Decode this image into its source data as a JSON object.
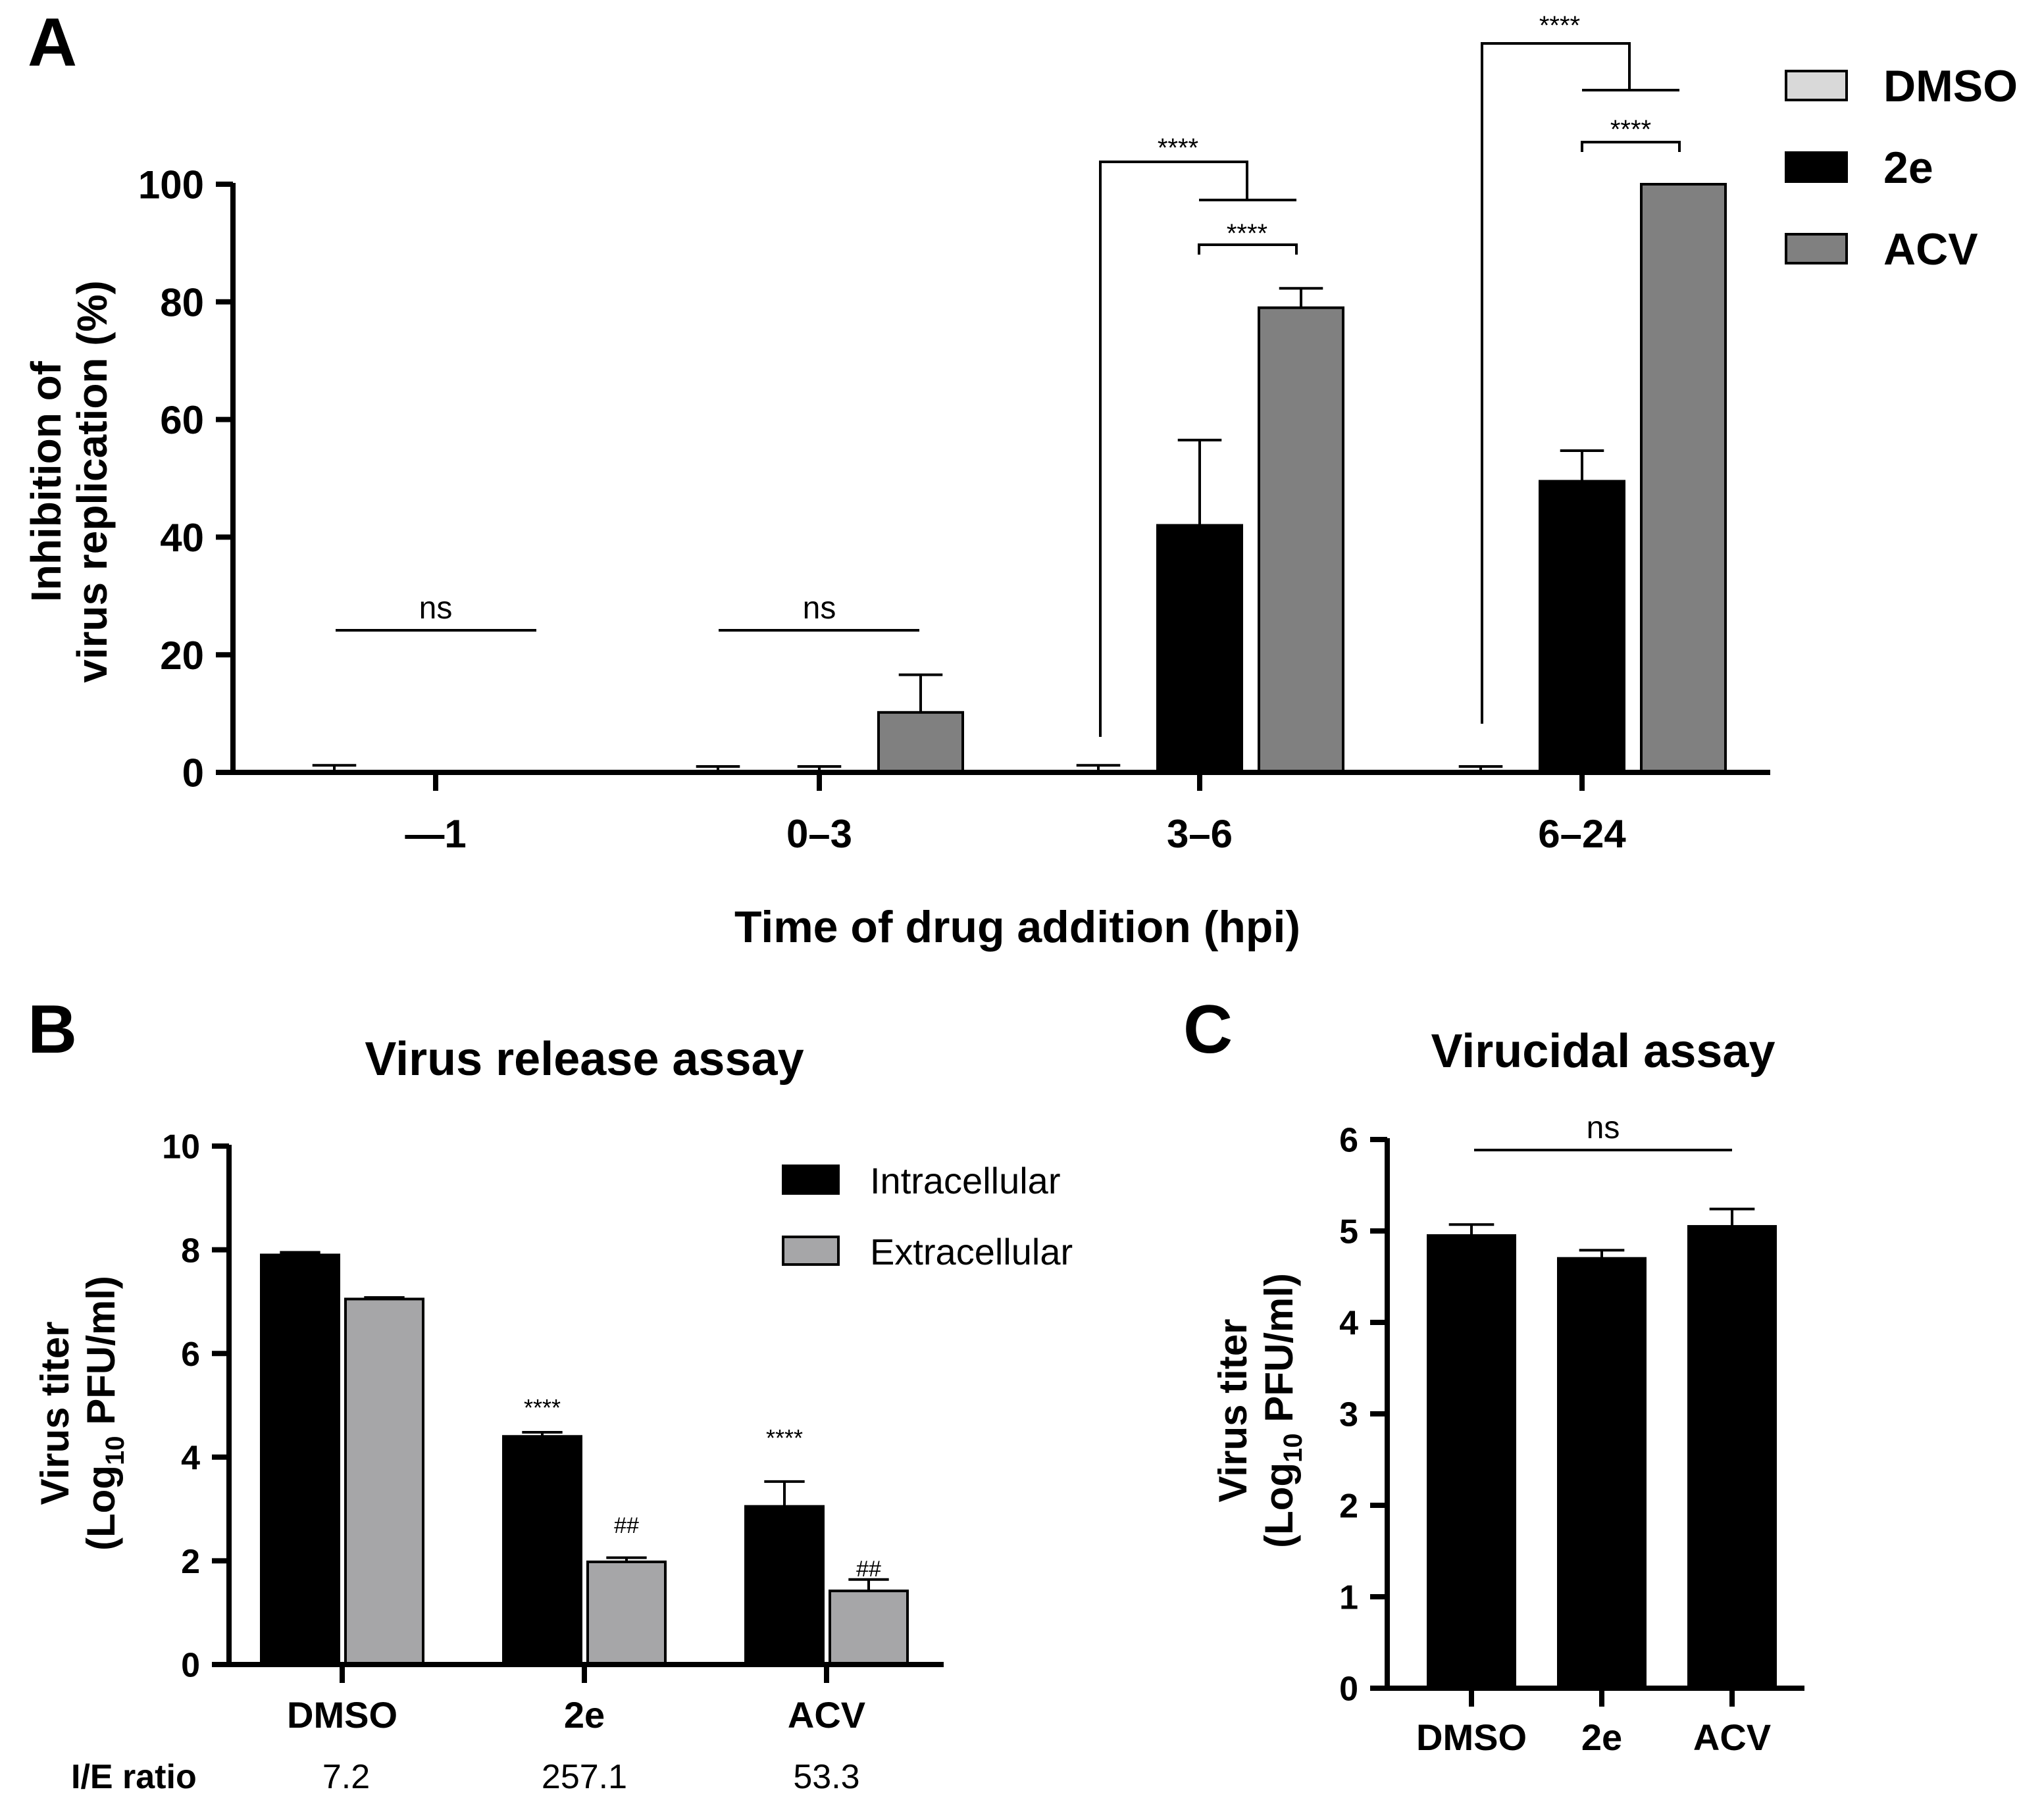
{
  "colors": {
    "dmso": "#d9d9d9",
    "e2": "#000000",
    "acv": "#808080",
    "extracellular": "#a6a6a8"
  },
  "chart_data": [
    {
      "panel": "A",
      "type": "bar",
      "title": "",
      "xlabel": "Time of drug addition (hpi)",
      "ylabel_line1": "Inhibition of",
      "ylabel_line2": "virus replication  (%)",
      "ylim": [
        0,
        100
      ],
      "yticks": [
        "0",
        "20",
        "40",
        "60",
        "80",
        "100"
      ],
      "categories": [
        "—1",
        "0–3",
        "3–6",
        "6–24"
      ],
      "legend": [
        "DMSO",
        "2e",
        "ACV"
      ],
      "series": [
        {
          "name": "DMSO",
          "values": [
            0,
            0,
            0,
            0
          ],
          "errors": [
            1.2,
            1.0,
            1.2,
            1.0
          ]
        },
        {
          "name": "2e",
          "values": [
            0,
            0,
            42,
            49.5
          ],
          "errors": [
            0,
            1.0,
            14.5,
            5.2
          ]
        },
        {
          "name": "ACV",
          "values": [
            0,
            10.2,
            79,
            100
          ],
          "errors": [
            0,
            6.4,
            3.3,
            0
          ]
        }
      ],
      "annotations": [
        "ns",
        "ns",
        "****",
        "****",
        "****",
        "****"
      ]
    },
    {
      "panel": "B",
      "type": "bar",
      "title": "Virus release assay",
      "ylabel_line1": "Virus titer",
      "ylabel_line2": "(Log",
      "ylabel_sub": "10",
      "ylabel_line2_end": " PFU/ml)",
      "ylim": [
        0,
        10
      ],
      "yticks": [
        "0",
        "2",
        "4",
        "6",
        "8",
        "10"
      ],
      "categories": [
        "DMSO",
        "2e",
        "ACV"
      ],
      "legend": [
        "Intracellular",
        "Extracellular"
      ],
      "series": [
        {
          "name": "Intracellular",
          "values": [
            7.9,
            4.4,
            3.05
          ],
          "errors": [
            0.05,
            0.08,
            0.48
          ]
        },
        {
          "name": "Extracellular",
          "values": [
            7.05,
            1.98,
            1.42
          ],
          "errors": [
            0.03,
            0.08,
            0.22
          ]
        }
      ],
      "annotations": [
        "****",
        "##",
        "****",
        "##"
      ],
      "ratio_label": "I/E ratio",
      "ratios": [
        "7.2",
        "257.1",
        "53.3"
      ]
    },
    {
      "panel": "C",
      "type": "bar",
      "title": "Virucidal assay",
      "ylabel_line1": "Virus titer",
      "ylabel_line2": "(Log",
      "ylabel_sub": "10",
      "ylabel_line2_end": " PFU/ml)",
      "ylim": [
        0,
        6
      ],
      "yticks": [
        "0",
        "1",
        "2",
        "3",
        "4",
        "5",
        "6"
      ],
      "categories": [
        "DMSO",
        "2e",
        "ACV"
      ],
      "series": [
        {
          "name": "Titer",
          "values": [
            4.95,
            4.7,
            5.05
          ],
          "errors": [
            0.12,
            0.09,
            0.19
          ]
        }
      ],
      "annotations": [
        "ns"
      ]
    }
  ],
  "panel_labels": [
    "A",
    "B",
    "C"
  ]
}
